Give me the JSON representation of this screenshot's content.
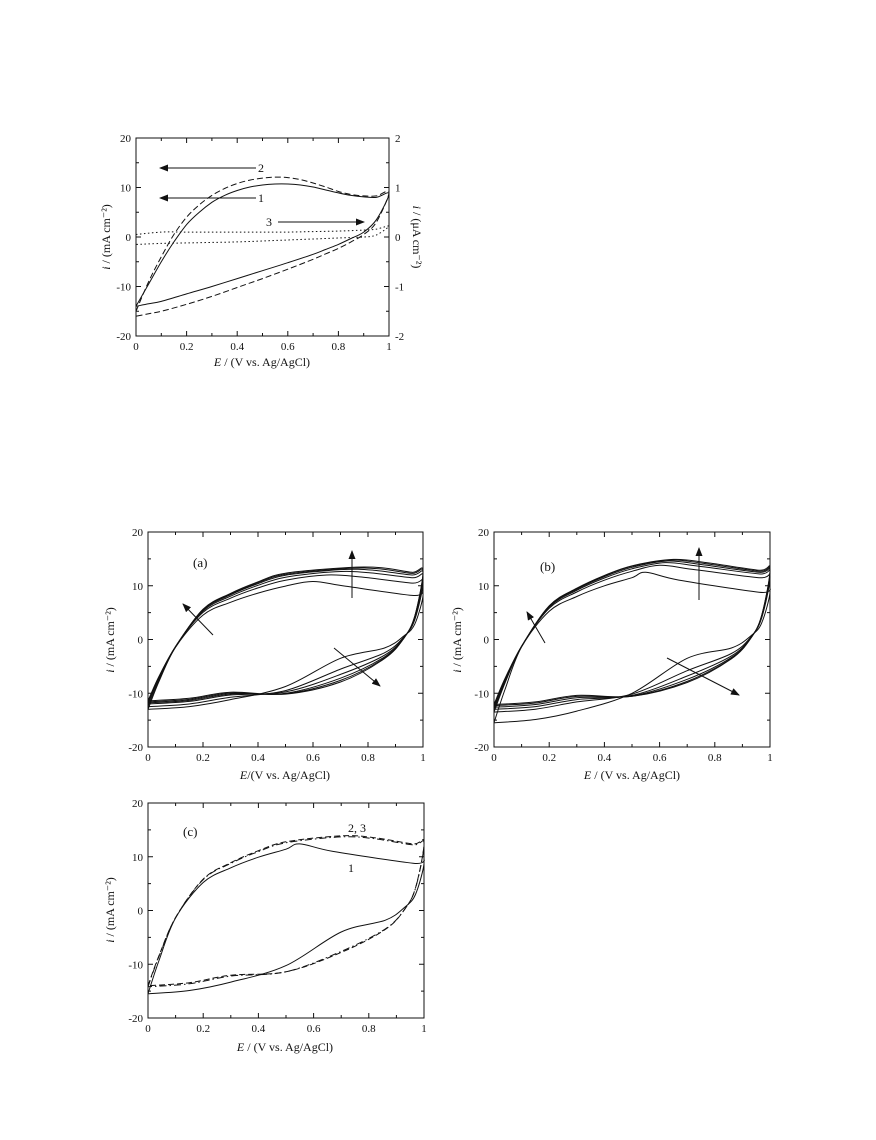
{
  "chart_data": [
    {
      "id": "top",
      "type": "line",
      "title": "",
      "xlabel_italic": "E",
      "xlabel_rest": " / (V vs. Ag/AgCl)",
      "ylabel_italic": "i",
      "ylabel_rest": " / (mA cm⁻²)",
      "y2label_italic": "i",
      "y2label_rest": " / (μA cm⁻²)",
      "xlim": [
        0,
        1
      ],
      "ylim": [
        -20,
        20
      ],
      "y2lim": [
        -2,
        2
      ],
      "xticks": [
        "0",
        "0.2",
        "0.4",
        "0.6",
        "0.8",
        "1"
      ],
      "yticks": [
        "20",
        "10",
        "0",
        "-10",
        "-20"
      ],
      "y2ticks": [
        "2",
        "1",
        "0",
        "-1",
        "-2"
      ],
      "labels": [
        "2",
        "1",
        "3"
      ],
      "series": [
        {
          "style": "solid",
          "axis": "left",
          "x": [
            0.0,
            0.05,
            0.1,
            0.15,
            0.2,
            0.25,
            0.3,
            0.35,
            0.4,
            0.45,
            0.5,
            0.55,
            0.6,
            0.65,
            0.7,
            0.75,
            0.8,
            0.85,
            0.9,
            0.95,
            1.0,
            0.95,
            0.9,
            0.85,
            0.8,
            0.75,
            0.7,
            0.6,
            0.5,
            0.4,
            0.3,
            0.2,
            0.1,
            0.05,
            0.0
          ],
          "y": [
            -14,
            -9.5,
            -5,
            -1,
            2.5,
            5,
            7,
            8.4,
            9.4,
            10.1,
            10.5,
            10.7,
            10.7,
            10.5,
            10.1,
            9.5,
            8.9,
            8.4,
            8.1,
            8.0,
            8.7,
            3.5,
            1.0,
            -0.3,
            -1.5,
            -2.5,
            -3.5,
            -5.2,
            -6.8,
            -8.4,
            -10,
            -11.5,
            -13,
            -13.5,
            -14
          ]
        },
        {
          "style": "dashed",
          "axis": "left",
          "x": [
            0.0,
            0.05,
            0.1,
            0.15,
            0.2,
            0.25,
            0.3,
            0.35,
            0.4,
            0.45,
            0.5,
            0.55,
            0.6,
            0.65,
            0.7,
            0.75,
            0.8,
            0.85,
            0.9,
            0.95,
            1.0,
            0.95,
            0.9,
            0.85,
            0.8,
            0.75,
            0.7,
            0.6,
            0.5,
            0.4,
            0.3,
            0.2,
            0.1,
            0.05,
            0.0
          ],
          "y": [
            -15,
            -9,
            -4,
            0.5,
            4,
            6.5,
            8.4,
            9.8,
            10.8,
            11.5,
            11.9,
            12.1,
            12.0,
            11.6,
            10.9,
            10.1,
            9.2,
            8.6,
            8.3,
            8.3,
            9.0,
            3.0,
            0.5,
            -1.0,
            -2.3,
            -3.4,
            -4.5,
            -6.5,
            -8.4,
            -10.2,
            -12,
            -13.6,
            -15,
            -15.5,
            -16
          ]
        },
        {
          "style": "dotted",
          "axis": "right",
          "x": [
            0.0,
            0.1,
            0.2,
            0.3,
            0.4,
            0.5,
            0.6,
            0.7,
            0.8,
            0.9,
            0.95,
            1.0,
            0.95,
            0.9,
            0.8,
            0.7,
            0.6,
            0.5,
            0.4,
            0.3,
            0.2,
            0.1,
            0.0
          ],
          "y": [
            0.05,
            0.1,
            0.1,
            0.1,
            0.1,
            0.1,
            0.1,
            0.11,
            0.12,
            0.14,
            0.16,
            0.22,
            0.04,
            0.0,
            -0.02,
            -0.04,
            -0.06,
            -0.08,
            -0.1,
            -0.11,
            -0.12,
            -0.13,
            -0.15
          ]
        }
      ]
    },
    {
      "id": "a",
      "type": "line",
      "panel_label": "(a)",
      "xlabel_italic": "E",
      "xlabel_rest": "/(V vs. Ag/AgCl)",
      "ylabel_italic": "i",
      "ylabel_rest": " / (mA cm⁻²)",
      "xlim": [
        0,
        1
      ],
      "ylim": [
        -20,
        20
      ],
      "xticks": [
        "0",
        "0.2",
        "0.4",
        "0.6",
        "0.8",
        "1"
      ],
      "yticks": [
        "20",
        "10",
        "0",
        "-10",
        "-20"
      ],
      "cycles": [
        {
          "peak": 10.8,
          "peak_x": 0.6,
          "end": 8.2,
          "start": -13,
          "low_mid": -3.5
        },
        {
          "peak": 12.0,
          "peak_x": 0.65,
          "end": 10.5,
          "start": -12.5,
          "low_mid": -5.5
        },
        {
          "peak": 12.6,
          "peak_x": 0.68,
          "end": 11.5,
          "start": -12.0,
          "low_mid": -6.5
        },
        {
          "peak": 13.0,
          "peak_x": 0.7,
          "end": 12.0,
          "start": -11.8,
          "low_mid": -7.2
        },
        {
          "peak": 13.2,
          "peak_x": 0.72,
          "end": 12.3,
          "start": -11.6,
          "low_mid": -7.6
        },
        {
          "peak": 13.4,
          "peak_x": 0.73,
          "end": 12.5,
          "start": -11.4,
          "low_mid": -7.9
        }
      ]
    },
    {
      "id": "b",
      "type": "line",
      "panel_label": "(b)",
      "xlabel_italic": "E",
      "xlabel_rest": " / (V vs. Ag/AgCl)",
      "ylabel_italic": "i",
      "ylabel_rest": " / (mA cm⁻²)",
      "xlim": [
        0,
        1
      ],
      "ylim": [
        -20,
        20
      ],
      "xticks": [
        "0",
        "0.2",
        "0.4",
        "0.6",
        "0.8",
        "1"
      ],
      "yticks": [
        "20",
        "10",
        "0",
        "-10",
        "-20"
      ],
      "cycles": [
        {
          "peak": 12.5,
          "peak_x": 0.55,
          "end": 8.8,
          "start": -15.5,
          "low_mid": -3.5
        },
        {
          "peak": 13.8,
          "peak_x": 0.6,
          "end": 11.5,
          "start": -13.5,
          "low_mid": -5.8
        },
        {
          "peak": 14.3,
          "peak_x": 0.62,
          "end": 12.2,
          "start": -13.0,
          "low_mid": -6.8
        },
        {
          "peak": 14.6,
          "peak_x": 0.63,
          "end": 12.5,
          "start": -12.6,
          "low_mid": -7.4
        },
        {
          "peak": 14.8,
          "peak_x": 0.64,
          "end": 12.7,
          "start": -12.3,
          "low_mid": -7.8
        },
        {
          "peak": 14.9,
          "peak_x": 0.65,
          "end": 12.9,
          "start": -12.1,
          "low_mid": -8.0
        }
      ]
    },
    {
      "id": "c",
      "type": "line",
      "panel_label": "(c)",
      "xlabel_italic": "E",
      "xlabel_rest": " / (V vs. Ag/AgCl)",
      "ylabel_italic": "i",
      "ylabel_rest": " / (mA cm⁻²)",
      "xlim": [
        0,
        1
      ],
      "ylim": [
        -20,
        20
      ],
      "xticks": [
        "0",
        "0.2",
        "0.4",
        "0.6",
        "0.8",
        "1"
      ],
      "yticks": [
        "20",
        "10",
        "0",
        "-10",
        "-20"
      ],
      "labels": [
        "2, 3",
        "1"
      ],
      "cycles": [
        {
          "style": "solid",
          "peak": 12.4,
          "peak_x": 0.55,
          "end": 8.8,
          "start": -15.5,
          "low_mid": -4.0
        },
        {
          "style": "dashed",
          "peak": 13.9,
          "peak_x": 0.7,
          "end": 12.4,
          "start": -14.0,
          "low_mid": -7.8
        },
        {
          "style": "dashdot",
          "peak": 13.7,
          "peak_x": 0.7,
          "end": 12.2,
          "start": -14.2,
          "low_mid": -7.6
        }
      ]
    }
  ]
}
